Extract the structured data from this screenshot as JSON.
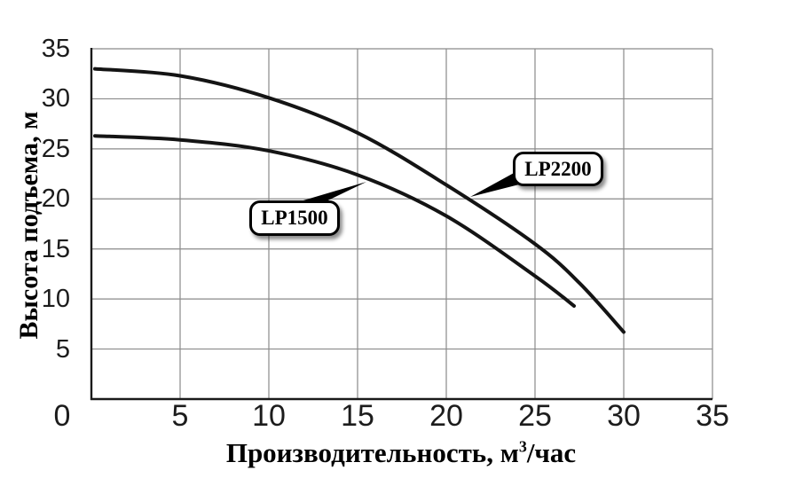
{
  "page": {
    "background_color": "#ffffff",
    "text_color": "#1c1c1c"
  },
  "chart_data": {
    "type": "line",
    "title": "",
    "xlabel": "Производительность, м³/час",
    "xlabel_parts": {
      "prefix": "Производительность, м",
      "sup": "3",
      "suffix": "/час"
    },
    "ylabel": "Высота подъема, м",
    "xlim": [
      0,
      35
    ],
    "ylim": [
      0,
      35
    ],
    "xticks": [
      0,
      5,
      10,
      15,
      20,
      25,
      30,
      35
    ],
    "yticks": [
      0,
      5,
      10,
      15,
      20,
      25,
      30,
      35
    ],
    "grid": true,
    "grid_color": "#8a8a8a",
    "axis_color": "#1a1a1a",
    "curve_color": "#141414",
    "legend_style": "callout-labels-on-plot",
    "series": [
      {
        "name": "LP2200",
        "points": [
          [
            0.2,
            33.0
          ],
          [
            5,
            32.3
          ],
          [
            10,
            30.1
          ],
          [
            15,
            26.6
          ],
          [
            20,
            21.4
          ],
          [
            25,
            15.5
          ],
          [
            27.5,
            11.6
          ],
          [
            30,
            6.7
          ]
        ]
      },
      {
        "name": "LP1500",
        "points": [
          [
            0.2,
            26.3
          ],
          [
            5,
            25.9
          ],
          [
            10,
            24.8
          ],
          [
            15,
            22.4
          ],
          [
            20,
            18.3
          ],
          [
            25,
            12.3
          ],
          [
            27.2,
            9.3
          ]
        ]
      }
    ],
    "callouts": [
      {
        "label": "LP2200"
      },
      {
        "label": "LP1500"
      }
    ]
  }
}
